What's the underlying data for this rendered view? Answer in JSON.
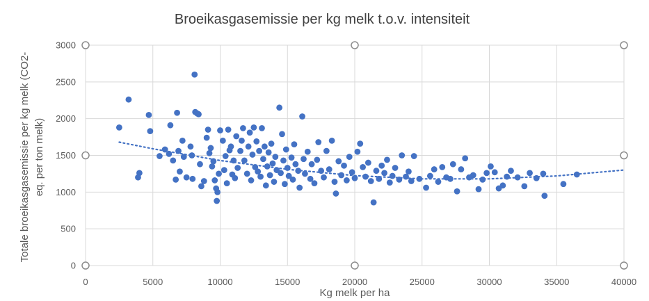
{
  "chart_data": {
    "type": "scatter",
    "title": "Broeikasgasemissie per kg melk t.o.v. intensiteit",
    "xlabel": "Kg melk per ha",
    "ylabel_lines": [
      "Totale broeikasgasemissie per kg melk (CO2-",
      "eq. per ton melk)"
    ],
    "xlim": [
      0,
      40000
    ],
    "ylim": [
      0,
      3000
    ],
    "xticks": [
      "0",
      "5000",
      "10000",
      "15000",
      "20000",
      "25000",
      "30000",
      "35000",
      "40000"
    ],
    "yticks": [
      "0",
      "500",
      "1000",
      "1500",
      "2000",
      "2500",
      "3000"
    ],
    "grid": true,
    "marker_color": "#4472C4",
    "trendline": {
      "style": "dotted",
      "color": "#4472C4",
      "points": [
        [
          2500,
          1680
        ],
        [
          5000,
          1590
        ],
        [
          10000,
          1430
        ],
        [
          15000,
          1310
        ],
        [
          20000,
          1225
        ],
        [
          25000,
          1180
        ],
        [
          30000,
          1180
        ],
        [
          35000,
          1220
        ],
        [
          40000,
          1300
        ]
      ]
    },
    "series": [
      {
        "values": [
          [
            2500,
            1880
          ],
          [
            3200,
            2260
          ],
          [
            3900,
            1200
          ],
          [
            4000,
            1260
          ],
          [
            4700,
            2050
          ],
          [
            4800,
            1830
          ],
          [
            5500,
            1490
          ],
          [
            5900,
            1580
          ],
          [
            6200,
            1520
          ],
          [
            6300,
            1910
          ],
          [
            6500,
            1430
          ],
          [
            6800,
            2080
          ],
          [
            6700,
            1170
          ],
          [
            6900,
            1560
          ],
          [
            7000,
            1280
          ],
          [
            7200,
            1700
          ],
          [
            7300,
            1480
          ],
          [
            7500,
            1200
          ],
          [
            7800,
            1620
          ],
          [
            7900,
            1500
          ],
          [
            7950,
            1180
          ],
          [
            8100,
            2600
          ],
          [
            8150,
            2090
          ],
          [
            8300,
            2070
          ],
          [
            8400,
            2060
          ],
          [
            8500,
            1380
          ],
          [
            8600,
            1080
          ],
          [
            8800,
            1150
          ],
          [
            9000,
            1740
          ],
          [
            9100,
            1850
          ],
          [
            9200,
            1530
          ],
          [
            9300,
            1600
          ],
          [
            9400,
            1350
          ],
          [
            9500,
            1420
          ],
          [
            9600,
            1160
          ],
          [
            9700,
            1050
          ],
          [
            9750,
            880
          ],
          [
            9800,
            1000
          ],
          [
            9900,
            1250
          ],
          [
            10000,
            1840
          ],
          [
            10200,
            1700
          ],
          [
            10300,
            1300
          ],
          [
            10400,
            1490
          ],
          [
            10500,
            1120
          ],
          [
            10600,
            1850
          ],
          [
            10700,
            1570
          ],
          [
            10800,
            1620
          ],
          [
            10900,
            1240
          ],
          [
            11000,
            1430
          ],
          [
            11100,
            1190
          ],
          [
            11200,
            1760
          ],
          [
            11300,
            1330
          ],
          [
            11500,
            1560
          ],
          [
            11600,
            1700
          ],
          [
            11700,
            1870
          ],
          [
            11800,
            1430
          ],
          [
            12000,
            1250
          ],
          [
            12100,
            1620
          ],
          [
            12200,
            1810
          ],
          [
            12300,
            1160
          ],
          [
            12400,
            1510
          ],
          [
            12500,
            1880
          ],
          [
            12600,
            1340
          ],
          [
            12700,
            1690
          ],
          [
            12800,
            1280
          ],
          [
            12900,
            1560
          ],
          [
            13000,
            1210
          ],
          [
            13100,
            1870
          ],
          [
            13200,
            1450
          ],
          [
            13300,
            1620
          ],
          [
            13400,
            1090
          ],
          [
            13500,
            1350
          ],
          [
            13600,
            1540
          ],
          [
            13700,
            1230
          ],
          [
            13800,
            1660
          ],
          [
            13900,
            1390
          ],
          [
            14000,
            1140
          ],
          [
            14100,
            1480
          ],
          [
            14200,
            1300
          ],
          [
            14400,
            2150
          ],
          [
            14500,
            1260
          ],
          [
            14600,
            1790
          ],
          [
            14700,
            1430
          ],
          [
            14800,
            1110
          ],
          [
            14900,
            1580
          ],
          [
            15000,
            1330
          ],
          [
            15100,
            1220
          ],
          [
            15300,
            1470
          ],
          [
            15400,
            1170
          ],
          [
            15500,
            1650
          ],
          [
            15600,
            1380
          ],
          [
            15800,
            1290
          ],
          [
            15900,
            1060
          ],
          [
            16100,
            2030
          ],
          [
            16200,
            1450
          ],
          [
            16300,
            1250
          ],
          [
            16500,
            1550
          ],
          [
            16700,
            1180
          ],
          [
            16800,
            1380
          ],
          [
            17000,
            1120
          ],
          [
            17200,
            1440
          ],
          [
            17300,
            1680
          ],
          [
            17500,
            1290
          ],
          [
            17700,
            1200
          ],
          [
            17900,
            1560
          ],
          [
            18100,
            1310
          ],
          [
            18300,
            1700
          ],
          [
            18500,
            1140
          ],
          [
            18600,
            980
          ],
          [
            18800,
            1420
          ],
          [
            19000,
            1230
          ],
          [
            19200,
            1360
          ],
          [
            19400,
            1160
          ],
          [
            19600,
            1480
          ],
          [
            19800,
            1270
          ],
          [
            20000,
            1190
          ],
          [
            20200,
            1550
          ],
          [
            20400,
            1660
          ],
          [
            20600,
            1340
          ],
          [
            20800,
            1210
          ],
          [
            21000,
            1400
          ],
          [
            21200,
            1150
          ],
          [
            21400,
            860
          ],
          [
            21600,
            1290
          ],
          [
            21800,
            1180
          ],
          [
            22000,
            1360
          ],
          [
            22200,
            1260
          ],
          [
            22400,
            1440
          ],
          [
            22600,
            1130
          ],
          [
            22800,
            1220
          ],
          [
            23000,
            1330
          ],
          [
            23300,
            1170
          ],
          [
            23500,
            1500
          ],
          [
            23800,
            1210
          ],
          [
            24000,
            1280
          ],
          [
            24200,
            1150
          ],
          [
            24400,
            1490
          ],
          [
            24800,
            1180
          ],
          [
            25300,
            1060
          ],
          [
            25600,
            1220
          ],
          [
            25900,
            1310
          ],
          [
            26200,
            1140
          ],
          [
            26500,
            1340
          ],
          [
            26800,
            1200
          ],
          [
            27100,
            1180
          ],
          [
            27300,
            1380
          ],
          [
            27600,
            1010
          ],
          [
            27900,
            1310
          ],
          [
            28200,
            1460
          ],
          [
            28500,
            1200
          ],
          [
            28800,
            1230
          ],
          [
            29200,
            1040
          ],
          [
            29500,
            1170
          ],
          [
            29800,
            1260
          ],
          [
            30100,
            1350
          ],
          [
            30400,
            1270
          ],
          [
            30700,
            1050
          ],
          [
            31000,
            1090
          ],
          [
            31300,
            1210
          ],
          [
            31600,
            1290
          ],
          [
            32100,
            1200
          ],
          [
            32600,
            1080
          ],
          [
            33000,
            1260
          ],
          [
            33500,
            1190
          ],
          [
            34000,
            1250
          ],
          [
            34100,
            950
          ],
          [
            35500,
            1110
          ],
          [
            36500,
            1240
          ]
        ]
      }
    ]
  }
}
